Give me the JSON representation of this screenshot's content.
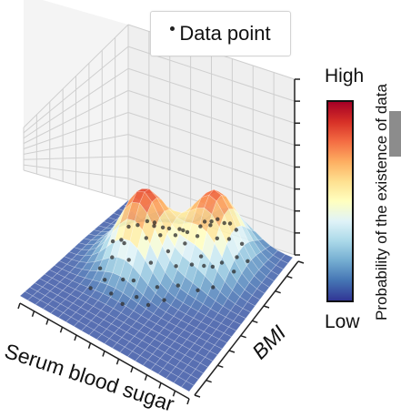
{
  "chart_data": {
    "type": "surface3d",
    "xlabel": "Serum blood sugar",
    "ylabel": "BMI",
    "legend": {
      "label": "Data point",
      "placement": "top-center"
    },
    "colorbar": {
      "high_label": "High",
      "low_label": "Low",
      "title": "Probability of the existence of data",
      "colors": [
        "#313695",
        "#4575b4",
        "#74add1",
        "#abd9e9",
        "#e0f3f8",
        "#ffffbf",
        "#fee090",
        "#fdae61",
        "#f46d43",
        "#d73027",
        "#a50026"
      ]
    },
    "grid": true,
    "axis_ranges": {
      "x": [
        0,
        1
      ],
      "y": [
        0,
        1
      ],
      "z": [
        0,
        1
      ]
    },
    "density_peaks": [
      {
        "x": 0.35,
        "y": 0.6,
        "height": 0.85
      },
      {
        "x": 0.65,
        "y": 0.8,
        "height": 0.8
      }
    ],
    "points": [
      [
        0.22,
        0.4
      ],
      [
        0.28,
        0.35
      ],
      [
        0.3,
        0.5
      ],
      [
        0.33,
        0.58
      ],
      [
        0.36,
        0.45
      ],
      [
        0.38,
        0.66
      ],
      [
        0.4,
        0.55
      ],
      [
        0.42,
        0.4
      ],
      [
        0.25,
        0.62
      ],
      [
        0.31,
        0.7
      ],
      [
        0.44,
        0.62
      ],
      [
        0.46,
        0.5
      ],
      [
        0.48,
        0.7
      ],
      [
        0.35,
        0.3
      ],
      [
        0.27,
        0.52
      ],
      [
        0.41,
        0.75
      ],
      [
        0.5,
        0.6
      ],
      [
        0.52,
        0.75
      ],
      [
        0.55,
        0.68
      ],
      [
        0.58,
        0.82
      ],
      [
        0.6,
        0.72
      ],
      [
        0.62,
        0.88
      ],
      [
        0.64,
        0.78
      ],
      [
        0.66,
        0.66
      ],
      [
        0.68,
        0.85
      ],
      [
        0.7,
        0.75
      ],
      [
        0.72,
        0.9
      ],
      [
        0.74,
        0.8
      ],
      [
        0.76,
        0.7
      ],
      [
        0.78,
        0.86
      ],
      [
        0.56,
        0.58
      ],
      [
        0.63,
        0.62
      ],
      [
        0.69,
        0.64
      ],
      [
        0.73,
        0.66
      ],
      [
        0.8,
        0.78
      ],
      [
        0.57,
        0.9
      ],
      [
        0.45,
        0.82
      ],
      [
        0.34,
        0.8
      ],
      [
        0.2,
        0.55
      ],
      [
        0.24,
        0.28
      ],
      [
        0.47,
        0.35
      ],
      [
        0.53,
        0.45
      ],
      [
        0.61,
        0.52
      ],
      [
        0.82,
        0.72
      ],
      [
        0.67,
        0.92
      ],
      [
        0.39,
        0.88
      ],
      [
        0.3,
        0.78
      ],
      [
        0.26,
        0.45
      ],
      [
        0.43,
        0.28
      ],
      [
        0.54,
        0.35
      ],
      [
        0.59,
        0.42
      ],
      [
        0.71,
        0.55
      ],
      [
        0.77,
        0.6
      ],
      [
        0.84,
        0.82
      ],
      [
        0.49,
        0.92
      ],
      [
        0.37,
        0.38
      ]
    ]
  }
}
